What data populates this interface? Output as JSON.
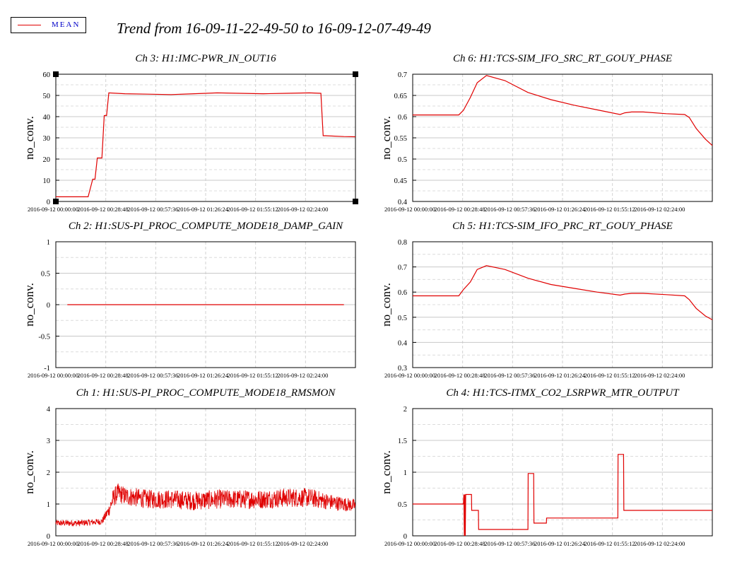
{
  "legend": {
    "label": "MEAN",
    "color": "#e00000"
  },
  "title": "Trend from 16-09-11-22-49-50 to 16-09-12-07-49-49",
  "x_ticks": [
    "2016-09-12 00:00:00",
    "2016-09-12 00:28:48",
    "2016-09-12 00:57:36",
    "2016-09-12 01:26:24",
    "2016-09-12 01:55:12",
    "2016-09-12 02:24:00"
  ],
  "chart_data": [
    {
      "type": "line",
      "title": "Ch 3: H1:IMC-PWR_IN_OUT16",
      "ylabel": "no_conv.",
      "ylim": [
        0,
        60
      ],
      "yticks": [
        "0",
        "10",
        "20",
        "30",
        "40",
        "50",
        "60"
      ],
      "grid": true,
      "series": [
        {
          "x_min": [
            0,
            14,
            16,
            17,
            18,
            20,
            21,
            22,
            23,
            30,
            40,
            50,
            60,
            70,
            80,
            90,
            100,
            110,
            115,
            116,
            117,
            125,
            130
          ],
          "y": [
            2.2,
            2.2,
            10.5,
            10.5,
            20.5,
            20.5,
            40.5,
            40.5,
            51.2,
            50.8,
            50.6,
            50.4,
            50.8,
            51.2,
            51.0,
            50.8,
            51.0,
            51.2,
            51.0,
            31.0,
            31.0,
            30.6,
            30.5
          ]
        }
      ]
    },
    {
      "type": "line",
      "title": "Ch 6: H1:TCS-SIM_IFO_SRC_RT_GOUY_PHASE",
      "ylabel": "no_conv.",
      "ylim": [
        0.4,
        0.7
      ],
      "yticks": [
        "0.4",
        "0.45",
        "0.5",
        "0.55",
        "0.6",
        "0.65",
        "0.7"
      ],
      "grid": true,
      "series": [
        {
          "x_min": [
            0,
            20,
            22,
            25,
            28,
            32,
            40,
            50,
            60,
            70,
            80,
            90,
            92,
            95,
            100,
            110,
            118,
            120,
            123,
            127,
            130
          ],
          "y": [
            0.604,
            0.604,
            0.615,
            0.645,
            0.68,
            0.697,
            0.685,
            0.657,
            0.64,
            0.627,
            0.616,
            0.605,
            0.609,
            0.611,
            0.611,
            0.607,
            0.605,
            0.598,
            0.572,
            0.547,
            0.532
          ]
        }
      ]
    },
    {
      "type": "line",
      "title": "Ch 2: H1:SUS-PI_PROC_COMPUTE_MODE18_DAMP_GAIN",
      "ylabel": "no_conv.",
      "ylim": [
        -1,
        1
      ],
      "yticks": [
        "-1",
        "-0.5",
        "0",
        "0.5",
        "1"
      ],
      "grid": true,
      "series": [
        {
          "x_min": [
            5,
            125
          ],
          "y": [
            0,
            0
          ]
        }
      ]
    },
    {
      "type": "line",
      "title": "Ch 5: H1:TCS-SIM_IFO_PRC_RT_GOUY_PHASE",
      "ylabel": "no_conv.",
      "ylim": [
        0.3,
        0.8
      ],
      "yticks": [
        "0.3",
        "0.4",
        "0.5",
        "0.6",
        "0.7",
        "0.8"
      ],
      "grid": true,
      "series": [
        {
          "x_min": [
            0,
            20,
            22,
            25,
            28,
            32,
            40,
            50,
            60,
            70,
            80,
            90,
            92,
            95,
            100,
            110,
            118,
            120,
            123,
            127,
            130
          ],
          "y": [
            0.585,
            0.585,
            0.61,
            0.64,
            0.69,
            0.705,
            0.69,
            0.655,
            0.63,
            0.615,
            0.6,
            0.588,
            0.592,
            0.595,
            0.595,
            0.59,
            0.585,
            0.57,
            0.535,
            0.505,
            0.49
          ]
        }
      ]
    },
    {
      "type": "line",
      "title": "Ch 1: H1:SUS-PI_PROC_COMPUTE_MODE18_RMSMON",
      "ylabel": "no_conv.",
      "ylim": [
        0,
        4
      ],
      "yticks": [
        "0",
        "1",
        "2",
        "3",
        "4"
      ],
      "grid": true,
      "series": [
        {
          "x_min": [
            0,
            10,
            20,
            23,
            25,
            27,
            30,
            40,
            50,
            60,
            70,
            80,
            90,
            100,
            110,
            120,
            130
          ],
          "y": [
            0.4,
            0.4,
            0.45,
            0.8,
            1.2,
            1.35,
            1.25,
            1.15,
            1.15,
            1.1,
            1.15,
            1.15,
            1.15,
            1.2,
            1.2,
            1.05,
            0.95
          ],
          "noise": [
            0.1,
            0.1,
            0.1,
            0.2,
            0.3,
            0.3,
            0.3,
            0.3,
            0.3,
            0.3,
            0.3,
            0.3,
            0.3,
            0.3,
            0.3,
            0.25,
            0.2
          ]
        }
      ]
    },
    {
      "type": "line",
      "title": "Ch 4: H1:TCS-ITMX_CO2_LSRPWR_MTR_OUTPUT",
      "ylabel": "no_conv.",
      "ylim": [
        0,
        2
      ],
      "yticks": [
        "0",
        "0.5",
        "1",
        "1.5",
        "2"
      ],
      "grid": true,
      "series": [
        {
          "x_min": [
            0,
            22,
            22.2,
            22.4,
            22.6,
            22.8,
            23,
            25.5,
            25.6,
            27,
            27.1,
            28.5,
            28.6,
            50,
            50.1,
            52.5,
            52.6,
            58,
            58.1,
            89,
            89.1,
            91.5,
            91.6,
            130
          ],
          "y": [
            0.5,
            0.5,
            0.65,
            0.0,
            0.65,
            0.0,
            0.65,
            0.65,
            0.4,
            0.4,
            0.4,
            0.4,
            0.1,
            0.1,
            0.98,
            0.98,
            0.2,
            0.2,
            0.28,
            0.28,
            1.28,
            1.28,
            0.4,
            0.4
          ]
        }
      ]
    }
  ]
}
